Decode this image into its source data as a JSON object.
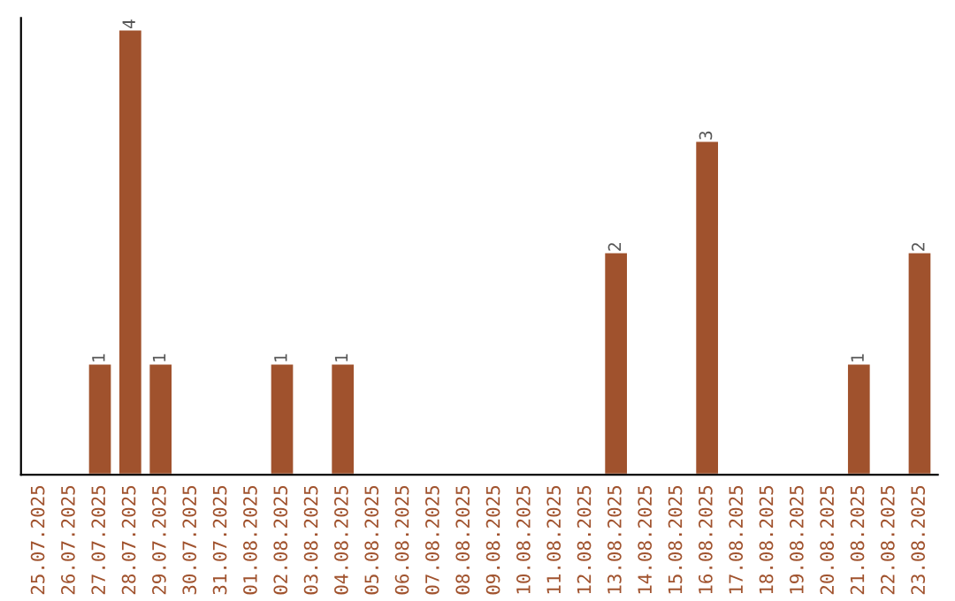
{
  "chart_data": {
    "type": "bar",
    "categories": [
      "25.07.2025",
      "26.07.2025",
      "27.07.2025",
      "28.07.2025",
      "29.07.2025",
      "30.07.2025",
      "31.07.2025",
      "01.08.2025",
      "02.08.2025",
      "03.08.2025",
      "04.08.2025",
      "05.08.2025",
      "06.08.2025",
      "07.08.2025",
      "08.08.2025",
      "09.08.2025",
      "10.08.2025",
      "11.08.2025",
      "12.08.2025",
      "13.08.2025",
      "14.08.2025",
      "15.08.2025",
      "16.08.2025",
      "17.08.2025",
      "18.08.2025",
      "19.08.2025",
      "20.08.2025",
      "21.08.2025",
      "22.08.2025",
      "23.08.2025"
    ],
    "values": [
      0,
      0,
      1,
      4,
      1,
      0,
      0,
      0,
      1,
      0,
      1,
      0,
      0,
      0,
      0,
      0,
      0,
      0,
      0,
      2,
      0,
      0,
      3,
      0,
      0,
      0,
      0,
      1,
      0,
      2
    ],
    "value_labels": [
      null,
      null,
      "1",
      "4",
      "1",
      null,
      null,
      null,
      "1",
      null,
      "1",
      null,
      null,
      null,
      null,
      null,
      null,
      null,
      null,
      "2",
      null,
      null,
      "3",
      null,
      null,
      null,
      null,
      "1",
      null,
      "2"
    ],
    "color": "#a0522d",
    "ylim": [
      0,
      4.1
    ],
    "tick_labels": "x",
    "grid": false,
    "legend": false
  }
}
